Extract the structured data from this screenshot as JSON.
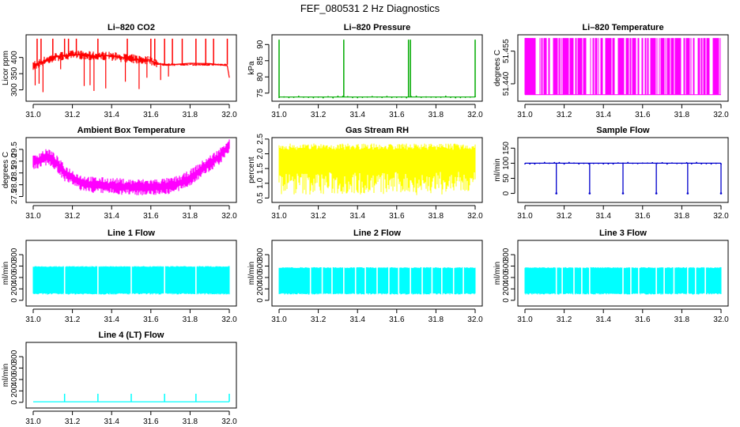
{
  "figure": {
    "title": "FEF_080531  2 Hz Diagnostics"
  },
  "chart_data": [
    {
      "id": "co2",
      "type": "line",
      "title": "Li–820 CO2",
      "ylabel": "Licor ppm",
      "color": "#ff0000",
      "xlim": [
        31.0,
        32.0
      ],
      "ylim": [
        265,
        470
      ],
      "yticks": [
        "300",
        "350",
        "400"
      ],
      "x_ticks": [
        "31.0",
        "31.2",
        "31.4",
        "31.6",
        "31.8",
        "32.0"
      ],
      "series": [
        {
          "name": "Li-820 CO2",
          "x": [
            31.0,
            31.02,
            31.04,
            31.08,
            31.12,
            31.16,
            31.2,
            31.24,
            31.28,
            31.32,
            31.36,
            31.4,
            31.44,
            31.48,
            31.52,
            31.56,
            31.6,
            31.63,
            31.66,
            31.7,
            31.8,
            31.9,
            31.99,
            32.0
          ],
          "y": [
            375,
            378,
            385,
            395,
            402,
            405,
            408,
            408,
            406,
            404,
            405,
            404,
            400,
            398,
            395,
            393,
            390,
            383,
            378,
            378,
            378,
            378,
            378,
            338
          ]
        }
      ],
      "spikes_up": [
        31.02,
        31.04,
        31.1,
        31.16,
        31.18,
        31.22,
        31.33,
        31.48,
        31.6,
        31.62,
        31.67,
        31.71,
        31.76,
        31.83,
        31.88,
        31.92,
        31.99
      ],
      "spikes_down": [
        31.01,
        31.03,
        31.05,
        31.14,
        31.26,
        31.29,
        31.31,
        31.37,
        31.47,
        31.54,
        31.58,
        31.65,
        31.69
      ],
      "spike_top": 458,
      "spike_bottom": 285
    },
    {
      "id": "pressure",
      "type": "line",
      "title": "Li–820 Pressure",
      "ylabel": "kPa",
      "color": "#00aa00",
      "xlim": [
        31.0,
        32.0
      ],
      "ylim": [
        72.5,
        93
      ],
      "yticks": [
        "75",
        "80",
        "85",
        "90"
      ],
      "x_ticks": [
        "31.0",
        "31.2",
        "31.4",
        "31.6",
        "31.8",
        "32.0"
      ],
      "series": [
        {
          "name": "Li-820 Pressure",
          "x": [
            31.0,
            32.0
          ],
          "y": [
            73.8,
            73.8
          ]
        }
      ],
      "spikes_up": [
        31.0,
        31.33,
        31.66,
        31.67,
        32.0
      ],
      "spike_top": 91.5
    },
    {
      "id": "licor_temp",
      "type": "line",
      "title": "Li–820 Temperature",
      "ylabel": "degrees C",
      "color": "#ff00ff",
      "xlim": [
        31.0,
        32.0
      ],
      "ylim": [
        51.432,
        51.4625
      ],
      "yticks": [
        "51.440",
        "51.455"
      ],
      "x_ticks": [
        "31.0",
        "31.2",
        "31.4",
        "31.6",
        "31.8",
        "32.0"
      ],
      "band": {
        "low": 51.435,
        "high": 51.461
      }
    },
    {
      "id": "ambient",
      "type": "line",
      "title": "Ambient Box Temperature",
      "ylabel": "degrees C",
      "color": "#ff00ff",
      "xlim": [
        31.0,
        32.0
      ],
      "ylim": [
        27.25,
        30.0
      ],
      "yticks": [
        "27.5",
        "28.0",
        "28.5",
        "29.0",
        "29.5"
      ],
      "x_ticks": [
        "31.0",
        "31.2",
        "31.4",
        "31.6",
        "31.8",
        "32.0"
      ],
      "series": [
        {
          "name": "Ambient Box Temperature",
          "x": [
            31.0,
            31.04,
            31.08,
            31.12,
            31.16,
            31.2,
            31.24,
            31.3,
            31.4,
            31.5,
            31.6,
            31.7,
            31.76,
            31.8,
            31.85,
            31.9,
            31.95,
            32.0
          ],
          "y": [
            28.9,
            29.1,
            29.2,
            28.9,
            28.5,
            28.3,
            28.1,
            28.0,
            27.95,
            27.9,
            27.9,
            27.95,
            28.1,
            28.3,
            28.6,
            28.9,
            29.2,
            29.7
          ]
        }
      ],
      "noise": 0.35
    },
    {
      "id": "rh",
      "type": "line",
      "title": "Gas Stream RH",
      "ylabel": "percent",
      "color": "#ffff00",
      "xlim": [
        31.0,
        32.0
      ],
      "ylim": [
        0.35,
        2.55
      ],
      "yticks": [
        "0.5",
        "1.0",
        "1.5",
        "2.0",
        "2.5"
      ],
      "x_ticks": [
        "31.0",
        "31.2",
        "31.4",
        "31.6",
        "31.8",
        "32.0"
      ],
      "band": {
        "low": 0.6,
        "high": 2.35
      }
    },
    {
      "id": "sample_flow",
      "type": "line",
      "title": "Sample Flow",
      "ylabel": "ml/min",
      "color": "#0000cc",
      "xlim": [
        31.0,
        32.0
      ],
      "ylim": [
        -30,
        185
      ],
      "yticks": [
        "0",
        "50",
        "100",
        "150"
      ],
      "x_ticks": [
        "31.0",
        "31.2",
        "31.4",
        "31.6",
        "31.8",
        "32.0"
      ],
      "series": [
        {
          "name": "Sample Flow",
          "x": [
            31.0,
            32.0
          ],
          "y": [
            100,
            100
          ]
        }
      ],
      "dips": [
        31.16,
        31.33,
        31.5,
        31.67,
        31.83,
        32.0
      ],
      "dip_bottom": 0
    },
    {
      "id": "line1",
      "type": "line",
      "title": "Line 1 Flow",
      "ylabel": "ml/min",
      "color": "#00ffff",
      "xlim": [
        31.0,
        32.0
      ],
      "ylim": [
        -100,
        1050
      ],
      "yticks": [
        "0",
        "200",
        "400",
        "600",
        "800"
      ],
      "x_ticks": [
        "31.0",
        "31.2",
        "31.4",
        "31.6",
        "31.8",
        "32.0"
      ],
      "band": {
        "low": 100,
        "high": 600
      },
      "gaps": [
        31.16,
        31.33,
        31.5,
        31.67,
        31.83
      ]
    },
    {
      "id": "line2",
      "type": "line",
      "title": "Line 2 Flow",
      "ylabel": "ml/min",
      "color": "#00ffff",
      "xlim": [
        31.0,
        32.0
      ],
      "ylim": [
        -100,
        1050
      ],
      "yticks": [
        "0",
        "200",
        "400",
        "600",
        "800"
      ],
      "x_ticks": [
        "31.0",
        "31.2",
        "31.4",
        "31.6",
        "31.8",
        "32.0"
      ],
      "band": {
        "low": 100,
        "high": 580
      },
      "gaps": [
        31.16,
        31.22,
        31.27,
        31.33,
        31.39,
        31.44,
        31.5,
        31.56,
        31.61,
        31.67,
        31.73,
        31.78,
        31.83,
        31.89,
        31.94
      ]
    },
    {
      "id": "line3",
      "type": "line",
      "title": "Line 3 Flow",
      "ylabel": "ml/min",
      "color": "#00ffff",
      "xlim": [
        31.0,
        32.0
      ],
      "ylim": [
        -100,
        1050
      ],
      "yticks": [
        "0",
        "200",
        "400",
        "600",
        "800"
      ],
      "x_ticks": [
        "31.0",
        "31.2",
        "31.4",
        "31.6",
        "31.8",
        "32.0"
      ],
      "band": {
        "low": 100,
        "high": 580
      },
      "gaps": [
        31.16,
        31.19,
        31.25,
        31.29,
        31.33,
        31.5,
        31.54,
        31.58,
        31.67,
        31.71,
        31.76,
        31.83,
        31.87,
        31.92
      ]
    },
    {
      "id": "line4",
      "type": "line",
      "title": "Line 4 (LT) Flow",
      "ylabel": "ml/min",
      "color": "#00ffff",
      "xlim": [
        31.0,
        32.0
      ],
      "ylim": [
        -100,
        1050
      ],
      "yticks": [
        "0",
        "200",
        "400",
        "600",
        "800"
      ],
      "x_ticks": [
        "31.0",
        "31.2",
        "31.4",
        "31.6",
        "31.8",
        "32.0"
      ],
      "series": [
        {
          "name": "Line 4 (LT) Flow",
          "x": [
            31.0,
            32.0
          ],
          "y": [
            10,
            10
          ]
        }
      ],
      "spikes_up": [
        31.16,
        31.33,
        31.5,
        31.67,
        31.83,
        32.0
      ],
      "spike_top": 150
    }
  ]
}
